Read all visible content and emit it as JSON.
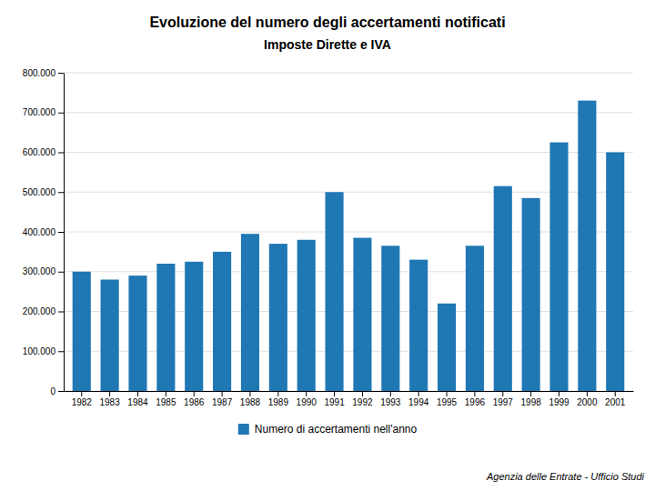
{
  "chart_data": {
    "type": "bar",
    "title": "Evoluzione del numero degli accertamenti notificati",
    "subtitle": "Imposte Dirette e IVA",
    "categories": [
      "1982",
      "1983",
      "1984",
      "1985",
      "1986",
      "1987",
      "1988",
      "1989",
      "1990",
      "1991",
      "1992",
      "1993",
      "1994",
      "1995",
      "1996",
      "1997",
      "1998",
      "1999",
      "2000",
      "2001"
    ],
    "series": [
      {
        "name": "Numero di accertamenti nell'anno",
        "values": [
          300000,
          280000,
          290000,
          320000,
          325000,
          350000,
          395000,
          370000,
          380000,
          500000,
          385000,
          365000,
          330000,
          220000,
          365000,
          515000,
          485000,
          625000,
          730000,
          600000
        ]
      }
    ],
    "ylim": [
      0,
      800000
    ],
    "yticks": [
      0,
      {
        "value": 100000,
        "label": "100.000"
      },
      {
        "value": 200000,
        "label": "200.000"
      },
      {
        "value": 300000,
        "label": "300.000"
      },
      {
        "value": 400000,
        "label": "400.000"
      },
      {
        "value": 500000,
        "label": "500.000"
      },
      {
        "value": 600000,
        "label": "600.000"
      },
      {
        "value": 700000,
        "label": "700.000"
      },
      {
        "value": 800000,
        "label": "800.000"
      }
    ],
    "grid": true,
    "legend": "bottom",
    "annotations": [
      "Agenzia delle Entrate - Ufficio Studi"
    ]
  }
}
